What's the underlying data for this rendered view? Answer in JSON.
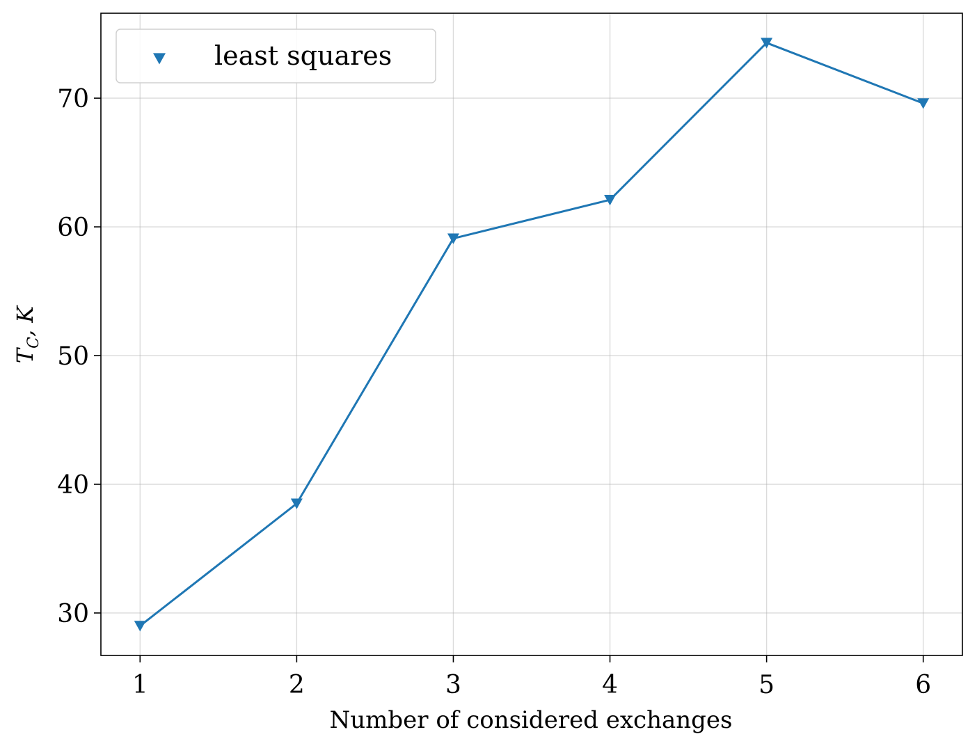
{
  "chart_data": {
    "type": "line",
    "xlabel": "Number of considered exchanges",
    "ylabel": "T_C, K",
    "ylabel_main": "T",
    "ylabel_sub": "C",
    "ylabel_rest": ", K",
    "x": [
      1,
      2,
      3,
      4,
      5,
      6
    ],
    "series": [
      {
        "name": "least squares",
        "values": [
          29.0,
          38.5,
          59.1,
          62.1,
          74.3,
          69.6
        ],
        "color": "#1f77b4",
        "marker": "triangle-down"
      }
    ],
    "xlim": [
      0.75,
      6.25
    ],
    "ylim": [
      26.7,
      76.6
    ],
    "xticks": [
      1,
      2,
      3,
      4,
      5,
      6
    ],
    "yticks": [
      30,
      40,
      50,
      60,
      70
    ],
    "grid": true,
    "legend_position": "top-left"
  }
}
